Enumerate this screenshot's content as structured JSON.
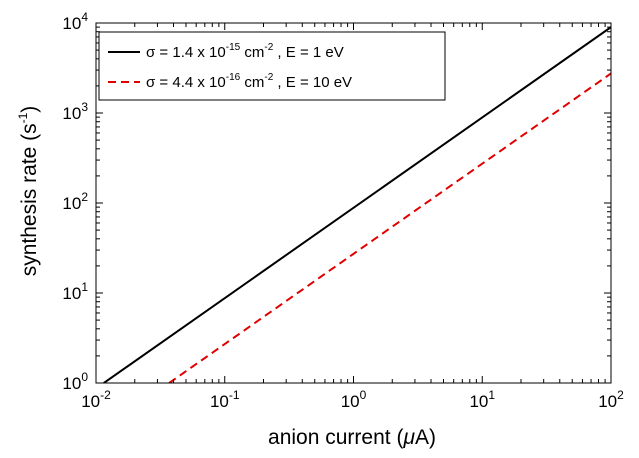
{
  "chart_data": {
    "type": "line",
    "x_scale": "log",
    "y_scale": "log",
    "xlim": [
      0.01,
      100
    ],
    "ylim": [
      1,
      10000
    ],
    "xlabel": "anion current (μA)",
    "xlabel_parts": {
      "main": "anion current (",
      "mu": "μ",
      "tail": "A)"
    },
    "ylabel": "synthesis rate (s⁻¹)",
    "ylabel_parts": {
      "main": "synthesis rate (s",
      "exp": "-1",
      "tail": ")"
    },
    "x_ticks": [
      {
        "value": 0.01,
        "base": "10",
        "exp": "-2"
      },
      {
        "value": 0.1,
        "base": "10",
        "exp": "-1"
      },
      {
        "value": 1,
        "base": "10",
        "exp": "0"
      },
      {
        "value": 10,
        "base": "10",
        "exp": "1"
      },
      {
        "value": 100,
        "base": "10",
        "exp": "2"
      }
    ],
    "y_ticks": [
      {
        "value": 1,
        "base": "10",
        "exp": "0"
      },
      {
        "value": 10,
        "base": "10",
        "exp": "1"
      },
      {
        "value": 100,
        "base": "10",
        "exp": "2"
      },
      {
        "value": 1000,
        "base": "10",
        "exp": "3"
      },
      {
        "value": 10000,
        "base": "10",
        "exp": "4"
      }
    ],
    "grid": false,
    "legend_position": "top-left",
    "series": [
      {
        "name": "σ = 1.4 x 10⁻¹⁵ cm⁻² , E = 1 eV",
        "label_parts": [
          "σ = 1.4 x 10",
          "-15",
          " cm",
          "-2",
          " , E = 1 eV"
        ],
        "color": "#000000",
        "dash": "solid",
        "x": [
          0.0115,
          100
        ],
        "y": [
          1,
          9000
        ]
      },
      {
        "name": "σ = 4.4 x 10⁻¹⁶ cm⁻² , E = 10 eV",
        "label_parts": [
          "σ = 4.4 x 10",
          "-16",
          " cm",
          "-2",
          " , E = 10 eV"
        ],
        "color": "#e00000",
        "dash": "dashed",
        "x": [
          0.037,
          100
        ],
        "y": [
          1,
          2750
        ]
      }
    ]
  }
}
